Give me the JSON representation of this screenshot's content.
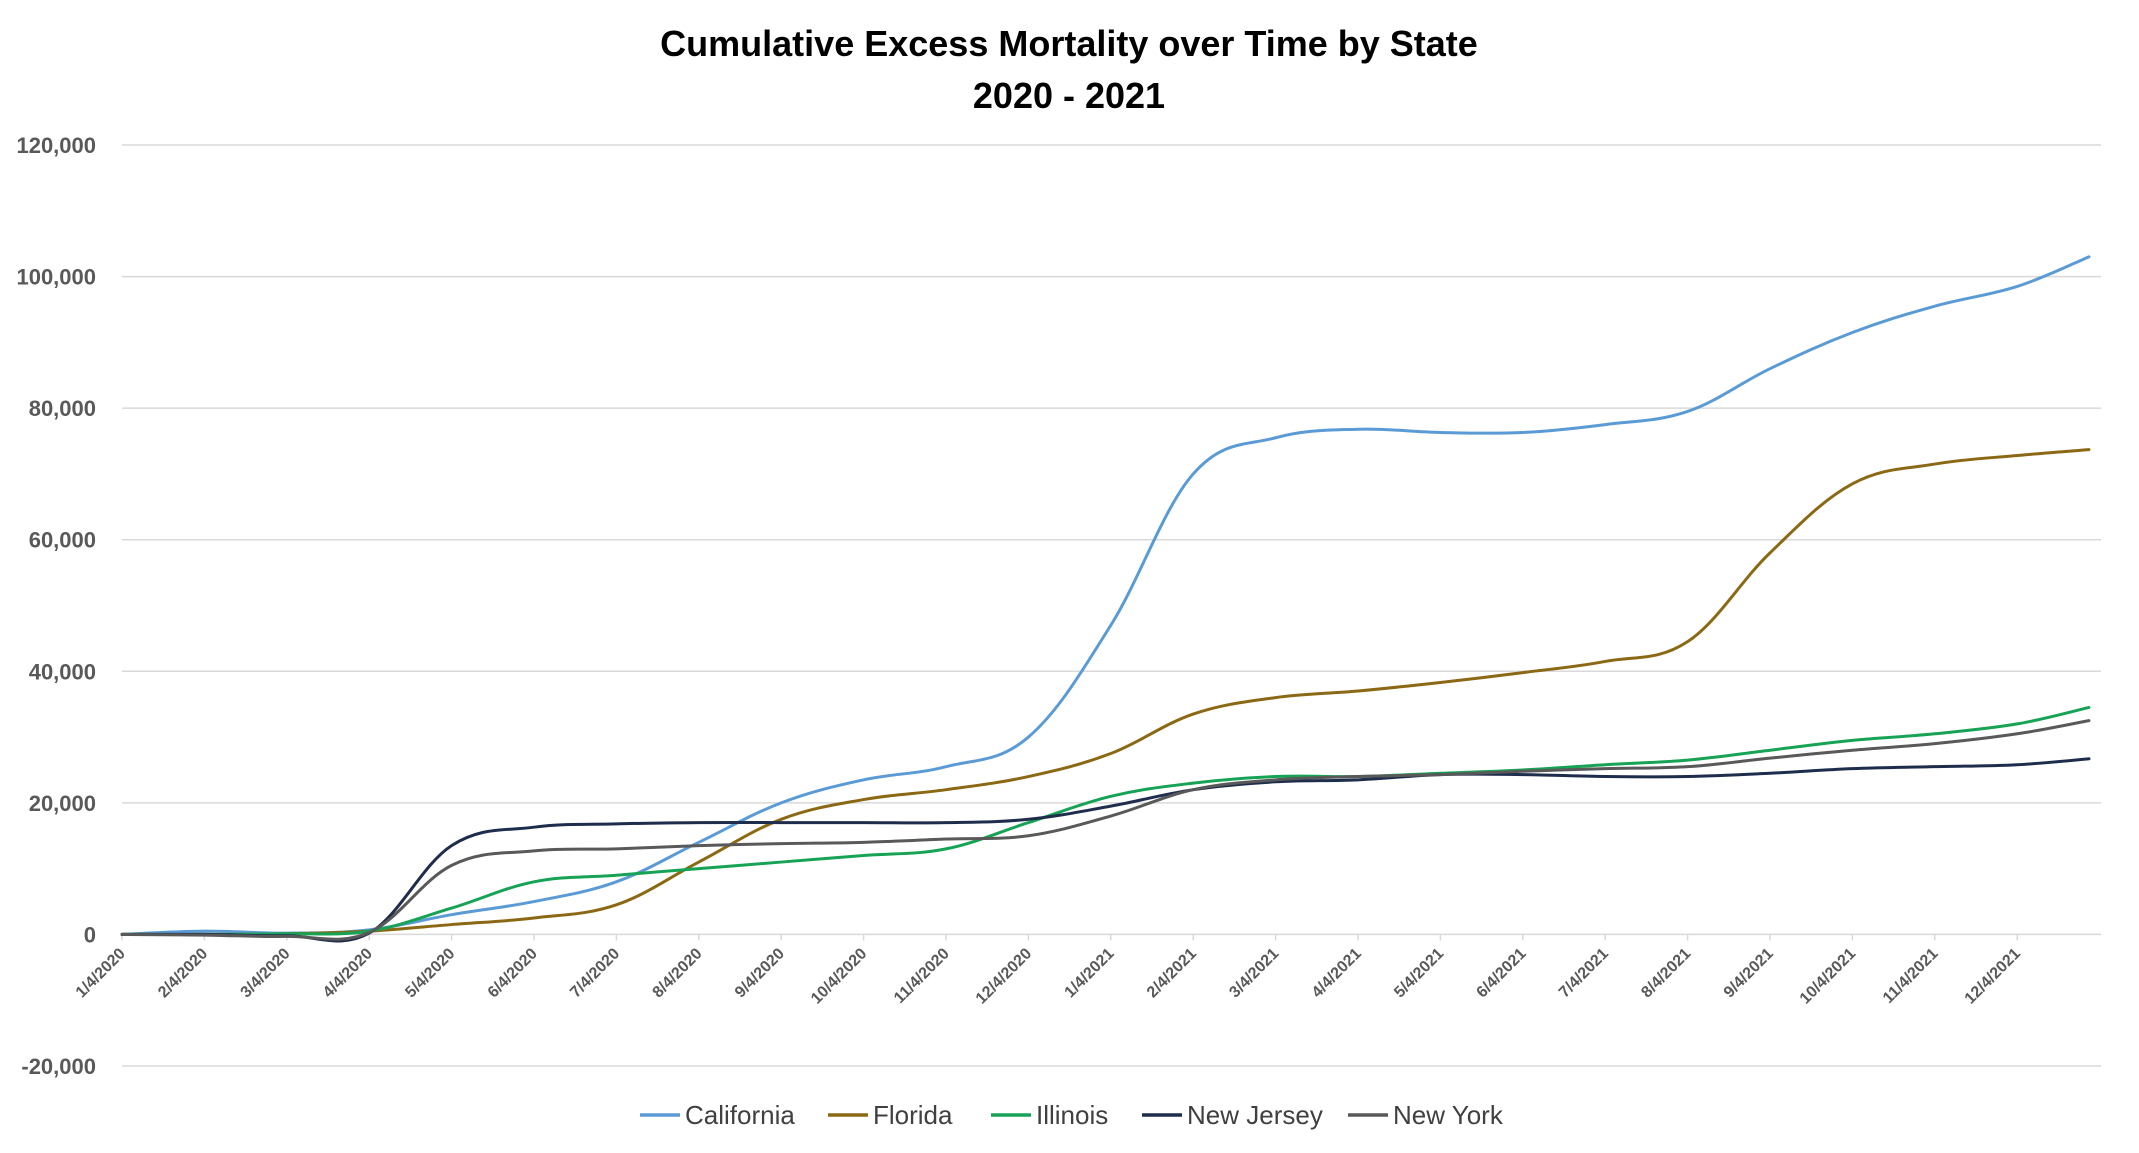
{
  "chart_data": {
    "type": "line",
    "title": "Cumulative Excess Mortality over Time by State",
    "subtitle": "2020 - 2021",
    "xlabel": "",
    "ylabel": "",
    "ylim": [
      -20000,
      120000
    ],
    "yticks": [
      -20000,
      0,
      20000,
      40000,
      60000,
      80000,
      100000,
      120000
    ],
    "ytick_labels": [
      "-20,000",
      "0",
      "20,000",
      "40,000",
      "60,000",
      "80,000",
      "100,000",
      "120,000"
    ],
    "x": [
      "1/4/2020",
      "2/4/2020",
      "3/4/2020",
      "4/4/2020",
      "5/4/2020",
      "6/4/2020",
      "7/4/2020",
      "8/4/2020",
      "9/4/2020",
      "10/4/2020",
      "11/4/2020",
      "12/4/2020",
      "1/4/2021",
      "2/4/2021",
      "3/4/2021",
      "4/4/2021",
      "5/4/2021",
      "6/4/2021",
      "7/4/2021",
      "8/4/2021",
      "9/4/2021",
      "10/4/2021",
      "11/4/2021",
      "12/4/2021",
      "12/31/2021"
    ],
    "xtick_labels": [
      "1/4/2020",
      "2/4/2020",
      "3/4/2020",
      "4/4/2020",
      "5/4/2020",
      "6/4/2020",
      "7/4/2020",
      "8/4/2020",
      "9/4/2020",
      "10/4/2020",
      "11/4/2020",
      "12/4/2020",
      "1/4/2021",
      "2/4/2021",
      "3/4/2021",
      "4/4/2021",
      "5/4/2021",
      "6/4/2021",
      "7/4/2021",
      "8/4/2021",
      "9/4/2021",
      "10/4/2021",
      "11/4/2021",
      "12/4/2021"
    ],
    "grid": true,
    "legend_position": "bottom",
    "series": [
      {
        "name": "California",
        "color": "#5b9bd5",
        "values": [
          0,
          500,
          200,
          700,
          3000,
          5000,
          8000,
          14000,
          20000,
          23500,
          25500,
          30000,
          47000,
          70000,
          75500,
          76800,
          76300,
          76300,
          77500,
          79500,
          86000,
          91500,
          95500,
          98500,
          103000
        ]
      },
      {
        "name": "Florida",
        "color": "#8b6914",
        "values": [
          0,
          0,
          100,
          500,
          1500,
          2500,
          4500,
          11000,
          17500,
          20500,
          22000,
          24000,
          27500,
          33500,
          36000,
          37000,
          38300,
          39800,
          41500,
          44500,
          58000,
          68500,
          71500,
          72800,
          73700
        ]
      },
      {
        "name": "Illinois",
        "color": "#17a355",
        "values": [
          0,
          0,
          100,
          500,
          4000,
          8000,
          9000,
          10000,
          11000,
          12000,
          13000,
          17000,
          21000,
          23000,
          24000,
          24000,
          24500,
          25000,
          25800,
          26500,
          28000,
          29500,
          30500,
          32000,
          34500
        ]
      },
      {
        "name": "New Jersey",
        "color": "#1f2d4d",
        "values": [
          0,
          0,
          -200,
          200,
          13500,
          16300,
          16800,
          17000,
          17000,
          17000,
          17000,
          17500,
          19500,
          22000,
          23200,
          23500,
          24300,
          24300,
          24000,
          24000,
          24500,
          25200,
          25500,
          25800,
          26700
        ]
      },
      {
        "name": "New York",
        "color": "#595959",
        "values": [
          0,
          -100,
          -300,
          300,
          10500,
          12700,
          13000,
          13500,
          13800,
          14000,
          14500,
          15000,
          18000,
          22000,
          23500,
          24000,
          24300,
          24800,
          25200,
          25500,
          26800,
          28000,
          29000,
          30500,
          32500
        ]
      }
    ]
  }
}
